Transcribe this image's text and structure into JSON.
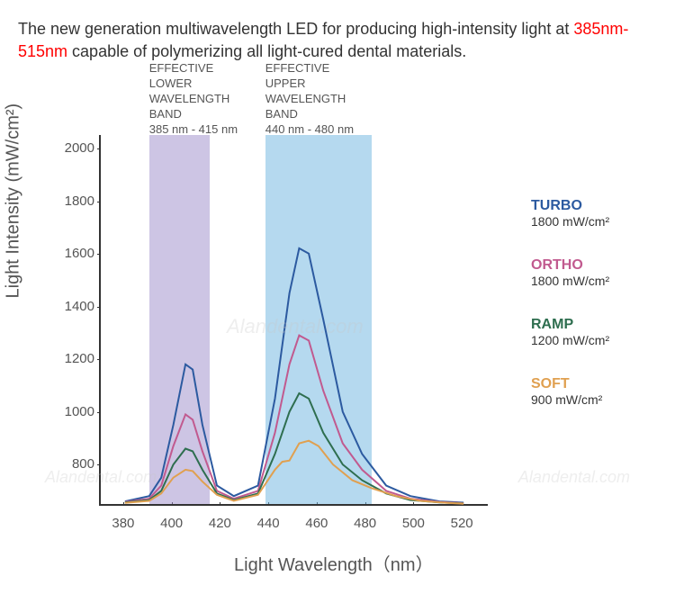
{
  "description": {
    "text_before": "The new generation multiwavelength LED for producing high-intensity light at ",
    "highlight": "385nm-515nm",
    "text_after": " capable of polymerizing all light-cured dental materials."
  },
  "chart": {
    "type": "line",
    "xlabel": "Light Wavelength（nm）",
    "ylabel": "Light Intensity (mW/cm²)",
    "xlim": [
      370,
      530
    ],
    "ylim": [
      650,
      2050
    ],
    "xticks": [
      380,
      400,
      420,
      440,
      460,
      480,
      500,
      520
    ],
    "yticks": [
      800,
      1000,
      1200,
      1400,
      1600,
      1800,
      2000
    ],
    "background_color": "#ffffff",
    "axis_color": "#333333",
    "label_fontsize": 20,
    "tick_fontsize": 15,
    "bands": [
      {
        "label_lines": [
          "EFFECTIVE",
          "LOWER",
          "WAVELENGTH",
          "BAND",
          "385 nm - 415 nm"
        ],
        "x_start": 390,
        "x_end": 415,
        "color": "#9b8cc9"
      },
      {
        "label_lines": [
          "EFFECTIVE",
          "UPPER",
          "WAVELENGTH",
          "BAND",
          "440 nm - 480 nm"
        ],
        "x_start": 438,
        "x_end": 482,
        "color": "#6bb3e0"
      }
    ],
    "series": [
      {
        "name": "TURBO",
        "value_label": "1800 mW/cm²",
        "color": "#2c5aa0",
        "line_width": 2,
        "points": [
          [
            380,
            660
          ],
          [
            390,
            680
          ],
          [
            395,
            750
          ],
          [
            400,
            950
          ],
          [
            405,
            1180
          ],
          [
            408,
            1160
          ],
          [
            412,
            950
          ],
          [
            418,
            720
          ],
          [
            425,
            680
          ],
          [
            435,
            720
          ],
          [
            442,
            1050
          ],
          [
            448,
            1450
          ],
          [
            452,
            1620
          ],
          [
            456,
            1600
          ],
          [
            462,
            1350
          ],
          [
            470,
            1000
          ],
          [
            478,
            840
          ],
          [
            488,
            720
          ],
          [
            498,
            680
          ],
          [
            510,
            660
          ],
          [
            520,
            655
          ]
        ]
      },
      {
        "name": "ORTHO",
        "value_label": "1800 mW/cm²",
        "color": "#c15a8f",
        "line_width": 2,
        "points": [
          [
            380,
            658
          ],
          [
            390,
            670
          ],
          [
            395,
            720
          ],
          [
            400,
            870
          ],
          [
            405,
            990
          ],
          [
            408,
            970
          ],
          [
            412,
            850
          ],
          [
            418,
            700
          ],
          [
            425,
            670
          ],
          [
            435,
            700
          ],
          [
            442,
            920
          ],
          [
            448,
            1180
          ],
          [
            452,
            1290
          ],
          [
            456,
            1270
          ],
          [
            462,
            1080
          ],
          [
            470,
            880
          ],
          [
            478,
            780
          ],
          [
            488,
            700
          ],
          [
            498,
            670
          ],
          [
            510,
            658
          ],
          [
            520,
            653
          ]
        ]
      },
      {
        "name": "RAMP",
        "value_label": "1200 mW/cm²",
        "color": "#2e6e4f",
        "line_width": 2,
        "points": [
          [
            380,
            656
          ],
          [
            390,
            665
          ],
          [
            395,
            700
          ],
          [
            400,
            800
          ],
          [
            405,
            860
          ],
          [
            408,
            850
          ],
          [
            412,
            780
          ],
          [
            418,
            690
          ],
          [
            425,
            665
          ],
          [
            435,
            690
          ],
          [
            442,
            840
          ],
          [
            448,
            1000
          ],
          [
            452,
            1070
          ],
          [
            456,
            1050
          ],
          [
            462,
            920
          ],
          [
            470,
            800
          ],
          [
            478,
            740
          ],
          [
            488,
            690
          ],
          [
            498,
            665
          ],
          [
            510,
            656
          ],
          [
            520,
            652
          ]
        ]
      },
      {
        "name": "SOFT",
        "value_label": "900 mW/cm²",
        "color": "#e0a050",
        "line_width": 2,
        "points": [
          [
            380,
            654
          ],
          [
            390,
            662
          ],
          [
            395,
            690
          ],
          [
            400,
            750
          ],
          [
            405,
            780
          ],
          [
            408,
            775
          ],
          [
            412,
            735
          ],
          [
            418,
            685
          ],
          [
            425,
            662
          ],
          [
            435,
            685
          ],
          [
            442,
            780
          ],
          [
            445,
            810
          ],
          [
            448,
            815
          ],
          [
            452,
            880
          ],
          [
            456,
            890
          ],
          [
            460,
            870
          ],
          [
            466,
            800
          ],
          [
            474,
            740
          ],
          [
            482,
            710
          ],
          [
            492,
            680
          ],
          [
            502,
            662
          ],
          [
            512,
            655
          ],
          [
            520,
            651
          ]
        ]
      }
    ]
  },
  "watermark": "Alandental.com"
}
